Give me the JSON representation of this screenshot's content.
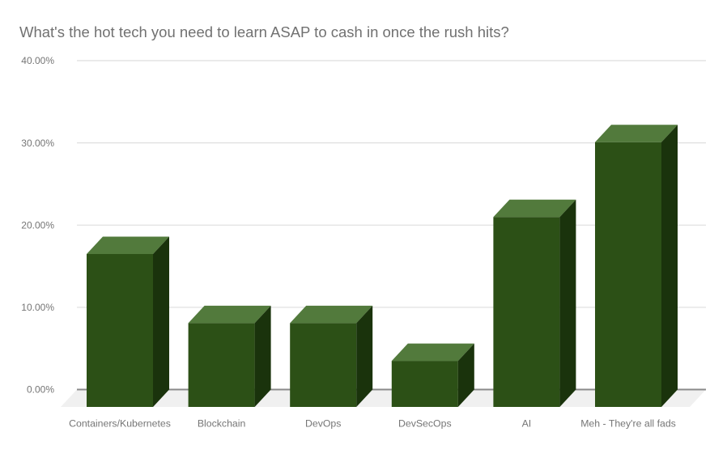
{
  "chart_data": {
    "type": "bar",
    "variant": "3d-column",
    "title": "What's the hot tech you need to learn ASAP to cash in once the rush hits?",
    "categories": [
      "Containers/Kubernetes",
      "Blockchain",
      "DevOps",
      "DevSecOps",
      "AI",
      "Meh - They're all fads"
    ],
    "values": [
      18.6,
      10.2,
      10.2,
      5.6,
      23.1,
      32.2
    ],
    "value_unit": "percent",
    "ylim": [
      0,
      40
    ],
    "yticks": [
      0,
      10,
      20,
      30,
      40
    ],
    "ytick_labels": [
      "0.00%",
      "10.00%",
      "20.00%",
      "30.00%",
      "40.00%"
    ],
    "xlabel": "",
    "ylabel": "",
    "grid": true,
    "legend": "none",
    "colors": {
      "bar_front": "#2c5016",
      "bar_top": "#527a3c",
      "bar_side": "#1a330c",
      "floor": "#f0f0f0",
      "gridline": "#e0e0e0",
      "zero_line": "#8a8a8a",
      "title_text": "#717171",
      "axis_text": "#757575",
      "background": "#ffffff"
    }
  }
}
